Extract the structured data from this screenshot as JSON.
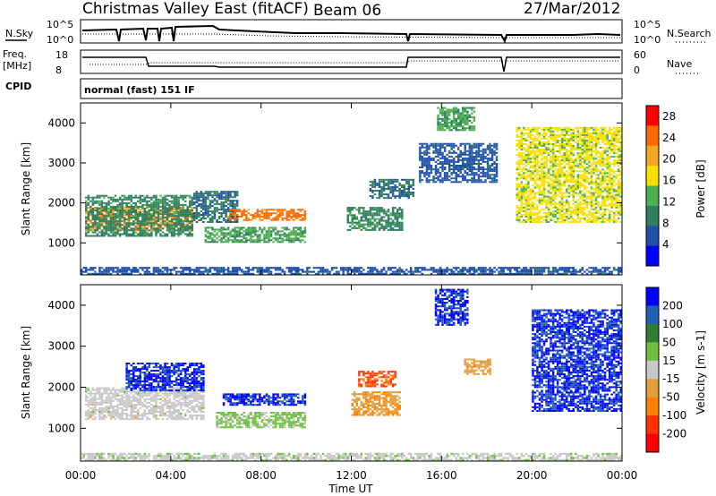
{
  "header": {
    "title": "Christmas Valley East (fitACF)",
    "beam": "Beam 06",
    "date": "27/Mar/2012"
  },
  "summary_panels": {
    "nsky_label": "N.Sky",
    "nsearch_label": "N.Search",
    "noise_ticks": [
      "10^5",
      "10^0"
    ],
    "freq_label_1": "Freq.",
    "freq_label_2": "[MHz]",
    "freq_ticks": [
      "18",
      "8"
    ],
    "nave_label": "Nave",
    "nave_ticks": [
      "60",
      "0"
    ],
    "cpid_label": "CPID",
    "cpid_value": "normal (fast) 151 IF"
  },
  "colors": {
    "power_scale": [
      "#0000ff",
      "#1f4fa8",
      "#2f7f5f",
      "#4caf50",
      "#f7e000",
      "#f5a623",
      "#ff6a00",
      "#ff0000"
    ],
    "velocity_scale": [
      "#0000ff",
      "#1e5fb4",
      "#2e7d32",
      "#6fbf3f",
      "#c8c8c8",
      "#e0a040",
      "#ff8000",
      "#ff3300",
      "#ff0000"
    ]
  },
  "chart_data": [
    {
      "type": "heatmap",
      "panel": "power",
      "ylabel": "Slant Range [km]",
      "xlabel": "Time UT",
      "x_ticks": [
        "00:00",
        "04:00",
        "08:00",
        "12:00",
        "16:00",
        "20:00",
        "00:00"
      ],
      "y_ticks": [
        1000,
        2000,
        3000,
        4000
      ],
      "ylim": [
        200,
        4500
      ],
      "xlim_hours": [
        0,
        24
      ],
      "colorbar": {
        "label": "Power [dB]",
        "ticks": [
          4,
          8,
          12,
          16,
          20,
          24,
          28
        ],
        "range": [
          0,
          30
        ]
      },
      "regions": [
        {
          "t0": 0.2,
          "t1": 5.0,
          "r0": 1300,
          "r1": 1900,
          "value": 22
        },
        {
          "t0": 0.2,
          "t1": 5.0,
          "r0": 1150,
          "r1": 2200,
          "value": 10
        },
        {
          "t0": 5.0,
          "t1": 7.0,
          "r0": 1500,
          "r1": 2300,
          "value": 8
        },
        {
          "t0": 6.5,
          "t1": 10.0,
          "r0": 1550,
          "r1": 1850,
          "value": 24
        },
        {
          "t0": 5.5,
          "t1": 10.0,
          "r0": 1000,
          "r1": 1400,
          "value": 12
        },
        {
          "t0": 11.8,
          "t1": 14.3,
          "r0": 1300,
          "r1": 1900,
          "value": 10
        },
        {
          "t0": 12.8,
          "t1": 14.8,
          "r0": 2100,
          "r1": 2600,
          "value": 8
        },
        {
          "t0": 15.0,
          "t1": 18.5,
          "r0": 2500,
          "r1": 3500,
          "value": 6
        },
        {
          "t0": 15.8,
          "t1": 17.5,
          "r0": 3800,
          "r1": 4400,
          "value": 12
        },
        {
          "t0": 19.3,
          "t1": 24.0,
          "r0": 1500,
          "r1": 3900,
          "value": 16
        },
        {
          "t0": 0.0,
          "t1": 24.0,
          "r0": 200,
          "r1": 400,
          "value": 6
        }
      ]
    },
    {
      "type": "heatmap",
      "panel": "velocity",
      "ylabel": "Slant Range [km]",
      "xlabel": "Time UT",
      "x_ticks": [
        "00:00",
        "04:00",
        "08:00",
        "12:00",
        "16:00",
        "20:00",
        "00:00"
      ],
      "y_ticks": [
        1000,
        2000,
        3000,
        4000
      ],
      "ylim": [
        200,
        4500
      ],
      "xlim_hours": [
        0,
        24
      ],
      "colorbar": {
        "label": "Velocity [m s-1]",
        "ticks": [
          200,
          100,
          50,
          15,
          -15,
          -50,
          -100,
          -200
        ],
        "range": [
          -250,
          250
        ]
      },
      "regions": [
        {
          "t0": 0.2,
          "t1": 5.5,
          "r0": 1200,
          "r1": 2000,
          "value": 0
        },
        {
          "t0": 2.0,
          "t1": 5.5,
          "r0": 1900,
          "r1": 2600,
          "value": 200
        },
        {
          "t0": 6.3,
          "t1": 10.0,
          "r0": 1550,
          "r1": 1850,
          "value": 200
        },
        {
          "t0": 6.0,
          "t1": 10.0,
          "r0": 1000,
          "r1": 1400,
          "value": 40
        },
        {
          "t0": 12.0,
          "t1": 14.2,
          "r0": 1300,
          "r1": 1900,
          "value": -80
        },
        {
          "t0": 12.3,
          "t1": 14.0,
          "r0": 2000,
          "r1": 2400,
          "value": -150
        },
        {
          "t0": 15.7,
          "t1": 17.2,
          "r0": 3500,
          "r1": 4400,
          "value": 200
        },
        {
          "t0": 17.0,
          "t1": 18.2,
          "r0": 2300,
          "r1": 2700,
          "value": -60
        },
        {
          "t0": 20.0,
          "t1": 24.0,
          "r0": 1400,
          "r1": 3900,
          "value": 200
        },
        {
          "t0": 0.0,
          "t1": 24.0,
          "r0": 200,
          "r1": 400,
          "value": 10
        }
      ]
    }
  ]
}
